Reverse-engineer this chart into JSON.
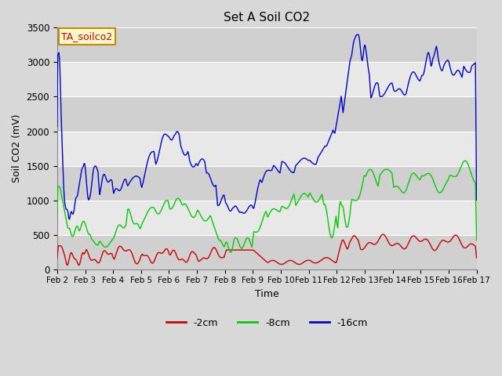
{
  "title": "Set A Soil CO2",
  "ylabel": "Soil CO2 (mV)",
  "xlabel": "Time",
  "legend_label": "TA_soilco2",
  "series_labels": [
    "-2cm",
    "-8cm",
    "-16cm"
  ],
  "series_colors": [
    "#cc0000",
    "#00cc00",
    "#0000cc"
  ],
  "ylim": [
    0,
    3500
  ],
  "fig_facecolor": "#d8d8d8",
  "plot_facecolor": "#e8e8e8",
  "band_colors": [
    "#d0d0d0",
    "#e8e8e8"
  ],
  "grid_color": "#ffffff",
  "legend_box_facecolor": "#ffffcc",
  "legend_box_edgecolor": "#cc8800",
  "tick_labels": [
    "Feb 2",
    "Feb 3",
    "Feb 4",
    "Feb 5",
    "Feb 6",
    "Feb 7",
    "Feb 8",
    "Feb 9",
    "Feb 10",
    "Feb 11",
    "Feb 12",
    "Feb 13",
    "Feb 14",
    "Feb 15",
    "Feb 16",
    "Feb 17"
  ],
  "yticks": [
    0,
    500,
    1000,
    1500,
    2000,
    2500,
    3000,
    3500
  ]
}
